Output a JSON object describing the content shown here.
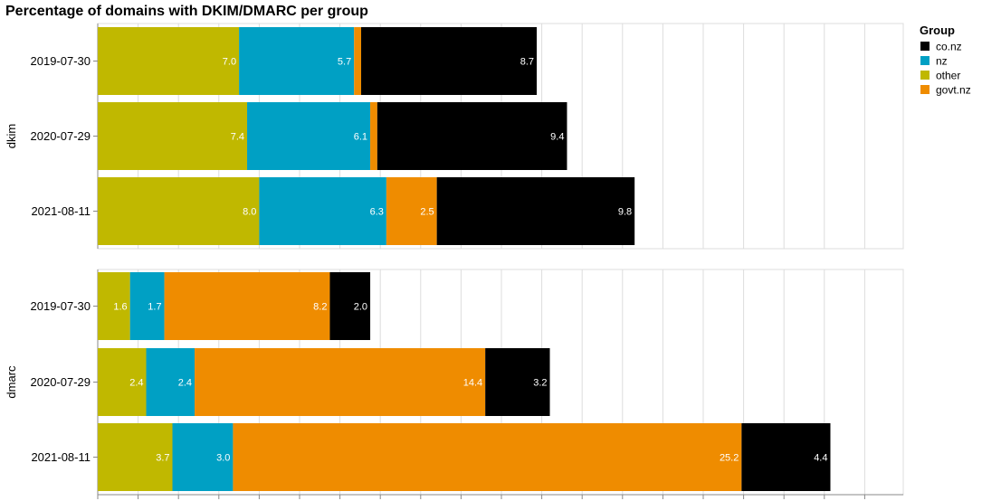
{
  "chart_data": {
    "type": "bar",
    "orientation": "horizontal",
    "stacked": true,
    "title": "Percentage of domains with DKIM/DMARC per group",
    "xlim": [
      0,
      43
    ],
    "grid": true,
    "legend": {
      "title": "Group",
      "placement": "top-right",
      "entries": [
        {
          "name": "co.nz",
          "color": "#000000"
        },
        {
          "name": "nz",
          "color": "#00a0c4"
        },
        {
          "name": "other",
          "color": "#c0b800"
        },
        {
          "name": "govt.nz",
          "color": "#ef8c00"
        }
      ]
    },
    "stack_order": [
      "other",
      "nz",
      "govt.nz",
      "co.nz"
    ],
    "colors": {
      "other": "#c0b800",
      "nz": "#00a0c4",
      "govt.nz": "#ef8c00",
      "co.nz": "#000000"
    },
    "facets": [
      {
        "name": "dkim",
        "categories": [
          "2019-07-30",
          "2020-07-29",
          "2021-08-11"
        ],
        "series": [
          {
            "name": "other",
            "values": [
              7.0,
              7.4,
              8.0
            ],
            "labels": [
              "7.0",
              "7.4",
              "8.0"
            ]
          },
          {
            "name": "nz",
            "values": [
              5.7,
              6.1,
              6.3
            ],
            "labels": [
              "5.7",
              "6.1",
              "6.3"
            ]
          },
          {
            "name": "govt.nz",
            "values": [
              0.35,
              0.35,
              2.5
            ],
            "labels": [
              "",
              "",
              "2.5"
            ]
          },
          {
            "name": "co.nz",
            "values": [
              8.7,
              9.4,
              9.8
            ],
            "labels": [
              "8.7",
              "9.4",
              "9.8"
            ]
          }
        ]
      },
      {
        "name": "dmarc",
        "categories": [
          "2019-07-30",
          "2020-07-29",
          "2021-08-11"
        ],
        "series": [
          {
            "name": "other",
            "values": [
              1.6,
              2.4,
              3.7
            ],
            "labels": [
              "1.6",
              "2.4",
              "3.7"
            ]
          },
          {
            "name": "nz",
            "values": [
              1.7,
              2.4,
              3.0
            ],
            "labels": [
              "1.7",
              "2.4",
              "3.0"
            ]
          },
          {
            "name": "govt.nz",
            "values": [
              8.2,
              14.4,
              25.2
            ],
            "labels": [
              "8.2",
              "14.4",
              "25.2"
            ]
          },
          {
            "name": "co.nz",
            "values": [
              2.0,
              3.2,
              4.4
            ],
            "labels": [
              "2.0",
              "3.2",
              "4.4"
            ]
          }
        ]
      }
    ]
  }
}
